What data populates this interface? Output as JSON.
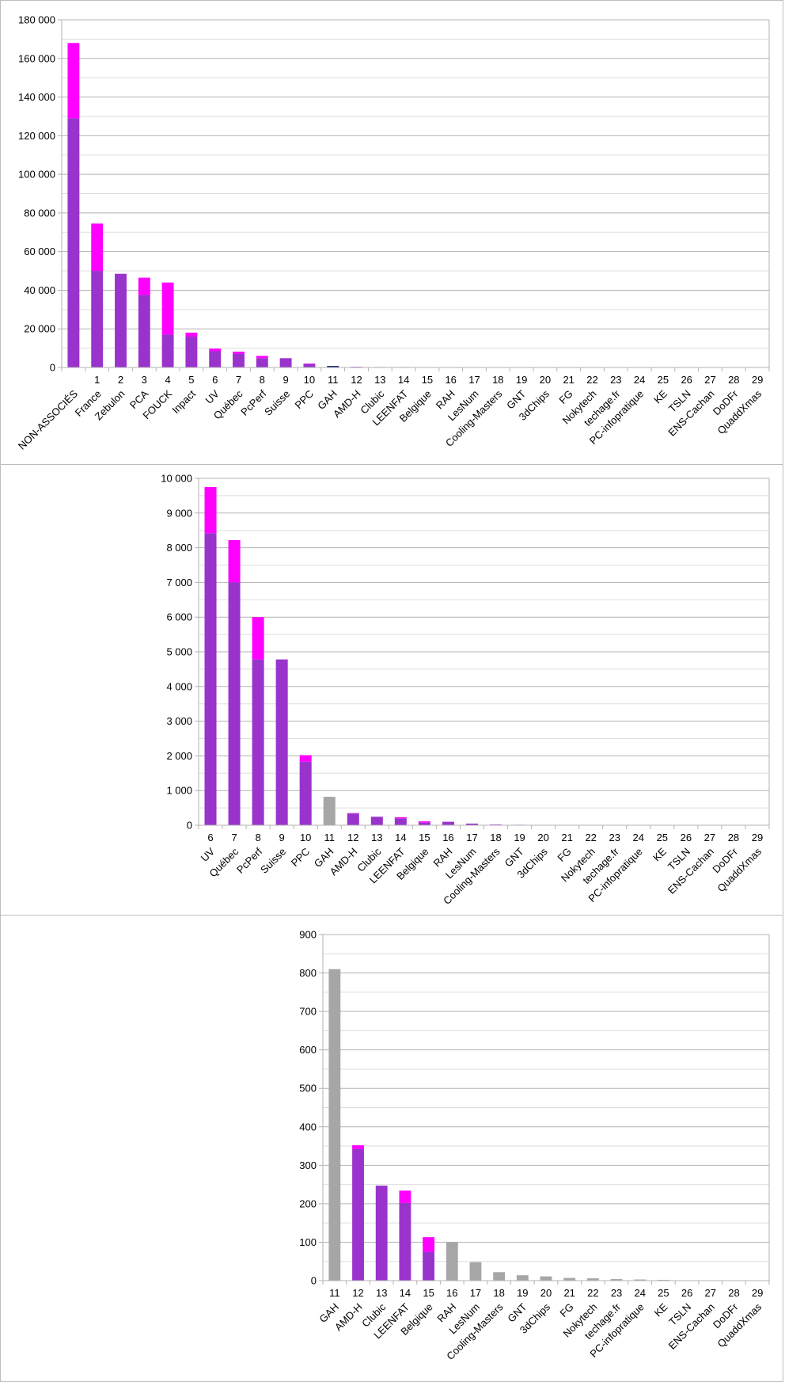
{
  "colors": {
    "base": "#9933cc",
    "top": "#ff00ff",
    "grey": "#a6a6a6",
    "navy": "#1f2a7a",
    "grid_major": "#b3b3b3",
    "grid_minor": "#dddddd",
    "axis": "#b3b3b3"
  },
  "chart_data": [
    {
      "type": "bar",
      "stacked": true,
      "ylim": [
        0,
        180000
      ],
      "y_ticks": [
        "0",
        "20 000",
        "40 000",
        "60 000",
        "80 000",
        "100 000",
        "120 000",
        "140 000",
        "160 000",
        "180 000"
      ],
      "y_tick_values": [
        0,
        20000,
        40000,
        60000,
        80000,
        100000,
        120000,
        140000,
        160000,
        180000
      ],
      "minor_grid": true,
      "rank_labels": [
        "",
        "1",
        "2",
        "3",
        "4",
        "5",
        "6",
        "7",
        "8",
        "9",
        "10",
        "11",
        "12",
        "13",
        "14",
        "15",
        "16",
        "17",
        "18",
        "19",
        "20",
        "21",
        "22",
        "23",
        "24",
        "25",
        "26",
        "27",
        "28",
        "29"
      ],
      "categories": [
        "NON-ASSOCIÉS",
        "France",
        "Zebulon",
        "PCA",
        "FOUCK",
        "Inpact",
        "UV",
        "Québec",
        "PcPerf",
        "Suisse",
        "PPC",
        "GAH",
        "AMD-H",
        "Clubic",
        "LEENFAT",
        "Belgique",
        "RAH",
        "LesNum",
        "Cooling-Masters",
        "GNT",
        "3dChips",
        "FG",
        "Nokytech",
        "techage.fr",
        "PC-infopratique",
        "KE",
        "TSLN",
        "ENS-Cachan",
        "DoDFr",
        "QuaddXmas"
      ],
      "series": [
        {
          "key": "base",
          "values": [
            129000,
            50000,
            48500,
            37500,
            17000,
            16000,
            8400,
            7000,
            4800,
            4800,
            1850,
            810,
            340,
            245,
            200,
            75,
            100,
            48,
            22,
            14,
            11,
            7,
            6,
            4,
            3,
            2,
            1,
            1,
            0.5,
            0.3
          ]
        },
        {
          "key": "top",
          "values": [
            39000,
            24500,
            0,
            9000,
            27000,
            2000,
            1350,
            1200,
            1200,
            0,
            180,
            0,
            10,
            0,
            32,
            38,
            0,
            0,
            0,
            0,
            0,
            0,
            0,
            0,
            0,
            0,
            0,
            0,
            0,
            0
          ]
        }
      ],
      "bar_colors": [
        "base",
        "base",
        "base",
        "base",
        "base",
        "base",
        "base",
        "base",
        "base",
        "base",
        "base",
        "navy",
        "base",
        "base",
        "base",
        "base",
        "base",
        "base",
        "base",
        "base",
        "base",
        "base",
        "base",
        "base",
        "base",
        "base",
        "base",
        "base",
        "base",
        "base"
      ]
    },
    {
      "type": "bar",
      "stacked": true,
      "ylim": [
        0,
        10000
      ],
      "y_ticks": [
        "0",
        "1 000",
        "2 000",
        "3 000",
        "4 000",
        "5 000",
        "6 000",
        "7 000",
        "8 000",
        "9 000",
        "10 000"
      ],
      "y_tick_values": [
        0,
        1000,
        2000,
        3000,
        4000,
        5000,
        6000,
        7000,
        8000,
        9000,
        10000
      ],
      "minor_grid": true,
      "rank_labels": [
        "6",
        "7",
        "8",
        "9",
        "10",
        "11",
        "12",
        "13",
        "14",
        "15",
        "16",
        "17",
        "18",
        "19",
        "20",
        "21",
        "22",
        "23",
        "24",
        "25",
        "26",
        "27",
        "28",
        "29"
      ],
      "categories": [
        "UV",
        "Québec",
        "PcPerf",
        "Suisse",
        "PPC",
        "GAH",
        "AMD-H",
        "Clubic",
        "LEENFAT",
        "Belgique",
        "RAH",
        "LesNum",
        "Cooling-Masters",
        "GNT",
        "3dChips",
        "FG",
        "Nokytech",
        "techage.fr",
        "PC-infopratique",
        "KE",
        "TSLN",
        "ENS-Cachan",
        "DoDFr",
        "QuaddXmas"
      ],
      "series": [
        {
          "key": "base",
          "values": [
            8420,
            7000,
            4780,
            4780,
            1830,
            820,
            340,
            245,
            200,
            75,
            100,
            48,
            22,
            14,
            11,
            7,
            6,
            4,
            3,
            2,
            1,
            1,
            0.5,
            0.3
          ]
        },
        {
          "key": "top",
          "values": [
            1330,
            1220,
            1220,
            0,
            190,
            0,
            10,
            0,
            32,
            38,
            0,
            0,
            0,
            0,
            0,
            0,
            0,
            0,
            0,
            0,
            0,
            0,
            0,
            0
          ]
        }
      ],
      "bar_colors": [
        "base",
        "base",
        "base",
        "base",
        "base",
        "grey",
        "base",
        "base",
        "base",
        "base",
        "base",
        "base",
        "base",
        "base",
        "base",
        "base",
        "base",
        "base",
        "base",
        "base",
        "base",
        "base",
        "base",
        "base"
      ]
    },
    {
      "type": "bar",
      "stacked": true,
      "ylim": [
        0,
        900
      ],
      "y_ticks": [
        "0",
        "100",
        "200",
        "300",
        "400",
        "500",
        "600",
        "700",
        "800",
        "900"
      ],
      "y_tick_values": [
        0,
        100,
        200,
        300,
        400,
        500,
        600,
        700,
        800,
        900
      ],
      "minor_grid": true,
      "rank_labels": [
        "11",
        "12",
        "13",
        "14",
        "15",
        "16",
        "17",
        "18",
        "19",
        "20",
        "21",
        "22",
        "23",
        "24",
        "25",
        "26",
        "27",
        "28",
        "29"
      ],
      "categories": [
        "GAH",
        "AMD-H",
        "Clubic",
        "LEENFAT",
        "Belgique",
        "RAH",
        "LesNum",
        "Cooling-Masters",
        "GNT",
        "3dChips",
        "FG",
        "Nokytech",
        "techage.fr",
        "PC-infopratique",
        "KE",
        "TSLN",
        "ENS-Cachan",
        "DoDFr",
        "QuaddXmas"
      ],
      "series": [
        {
          "key": "base",
          "values": [
            810,
            342,
            247,
            202,
            75,
            100,
            48,
            22,
            14,
            11,
            7,
            6,
            4,
            3,
            2,
            1,
            1,
            0.5,
            0.3
          ]
        },
        {
          "key": "top",
          "values": [
            0,
            10,
            0,
            32,
            38,
            0,
            0,
            0,
            0,
            0,
            0,
            0,
            0,
            0,
            0,
            0,
            0,
            0,
            0
          ]
        }
      ],
      "bar_colors": [
        "grey",
        "base",
        "base",
        "base",
        "base",
        "grey",
        "grey",
        "grey",
        "grey",
        "grey",
        "grey",
        "grey",
        "grey",
        "grey",
        "grey",
        "grey",
        "grey",
        "grey",
        "grey"
      ]
    }
  ]
}
